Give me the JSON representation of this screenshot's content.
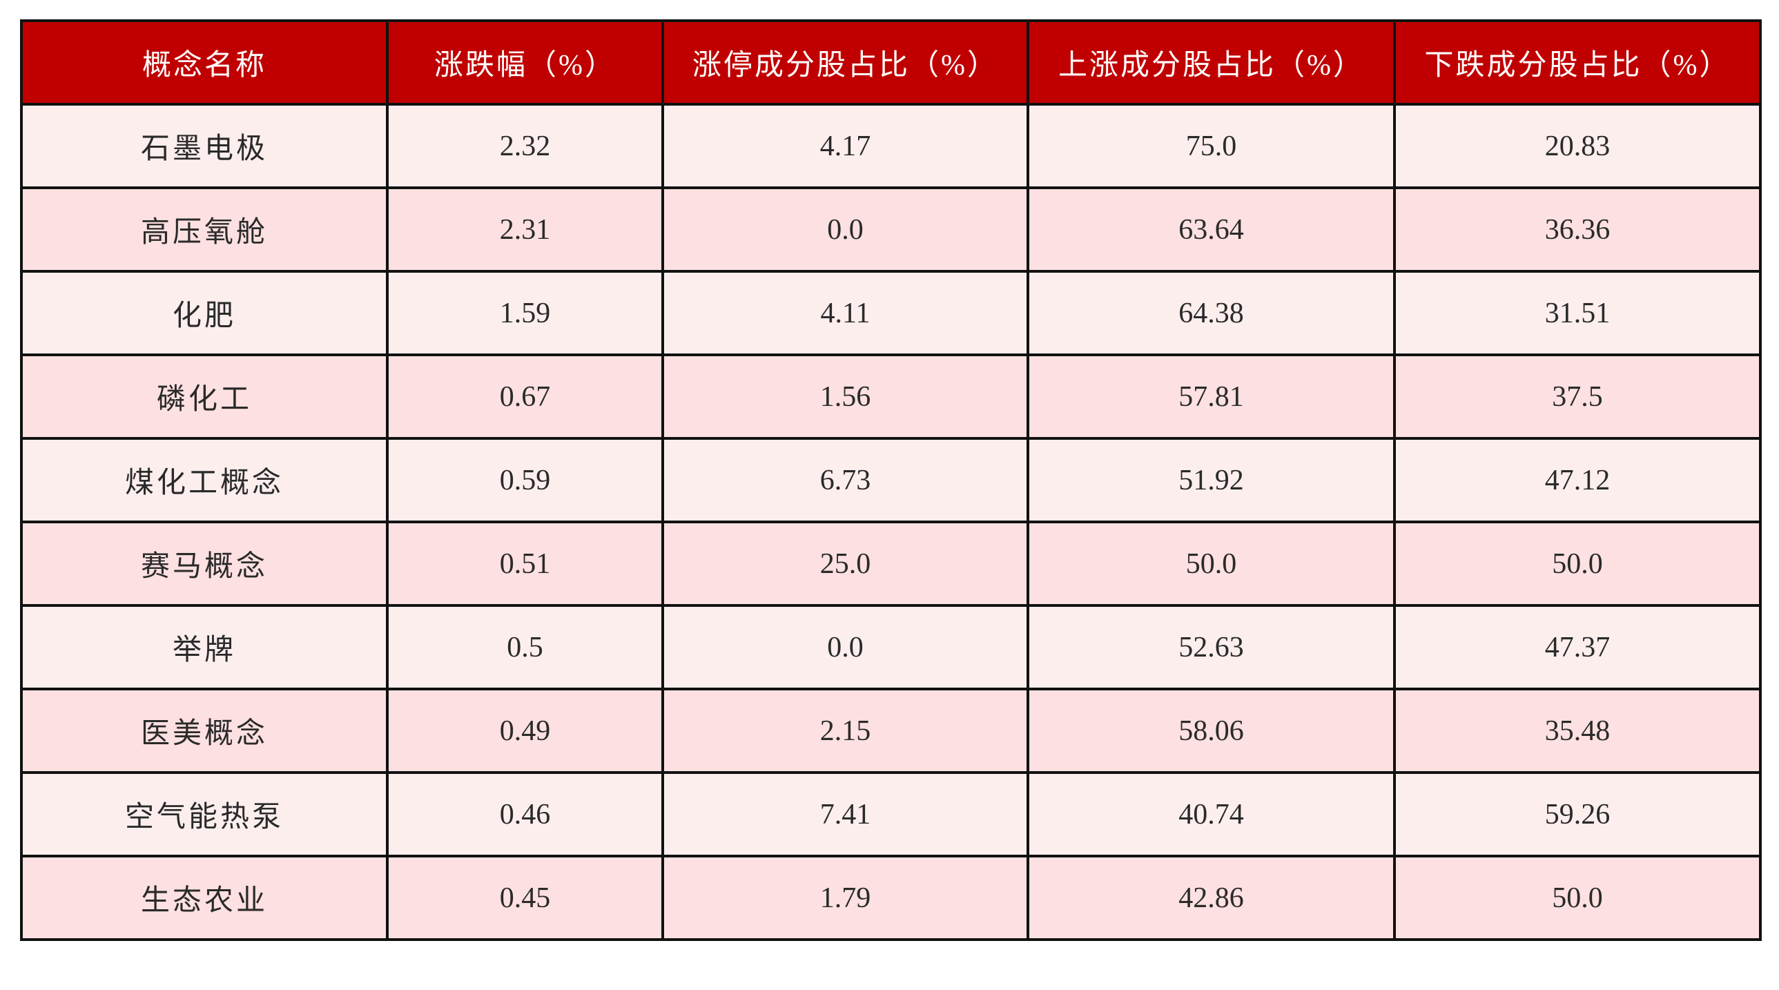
{
  "table": {
    "headers": [
      "概念名称",
      "涨跌幅（%）",
      "涨停成分股占比（%）",
      "上涨成分股占比（%）",
      "下跌成分股占比（%）"
    ],
    "rows": [
      [
        "石墨电极",
        "2.32",
        "4.17",
        "75.0",
        "20.83"
      ],
      [
        "高压氧舱",
        "2.31",
        "0.0",
        "63.64",
        "36.36"
      ],
      [
        "化肥",
        "1.59",
        "4.11",
        "64.38",
        "31.51"
      ],
      [
        "磷化工",
        "0.67",
        "1.56",
        "57.81",
        "37.5"
      ],
      [
        "煤化工概念",
        "0.59",
        "6.73",
        "51.92",
        "47.12"
      ],
      [
        "赛马概念",
        "0.51",
        "25.0",
        "50.0",
        "50.0"
      ],
      [
        "举牌",
        "0.5",
        "0.0",
        "52.63",
        "47.37"
      ],
      [
        "医美概念",
        "0.49",
        "2.15",
        "58.06",
        "35.48"
      ],
      [
        "空气能热泵",
        "0.46",
        "7.41",
        "40.74",
        "59.26"
      ],
      [
        "生态农业",
        "0.45",
        "1.79",
        "42.86",
        "50.0"
      ]
    ]
  },
  "colors": {
    "header_bg": "#c00000",
    "row_odd": "#fdeeee",
    "row_even": "#fde0e1",
    "border": "#111111"
  }
}
